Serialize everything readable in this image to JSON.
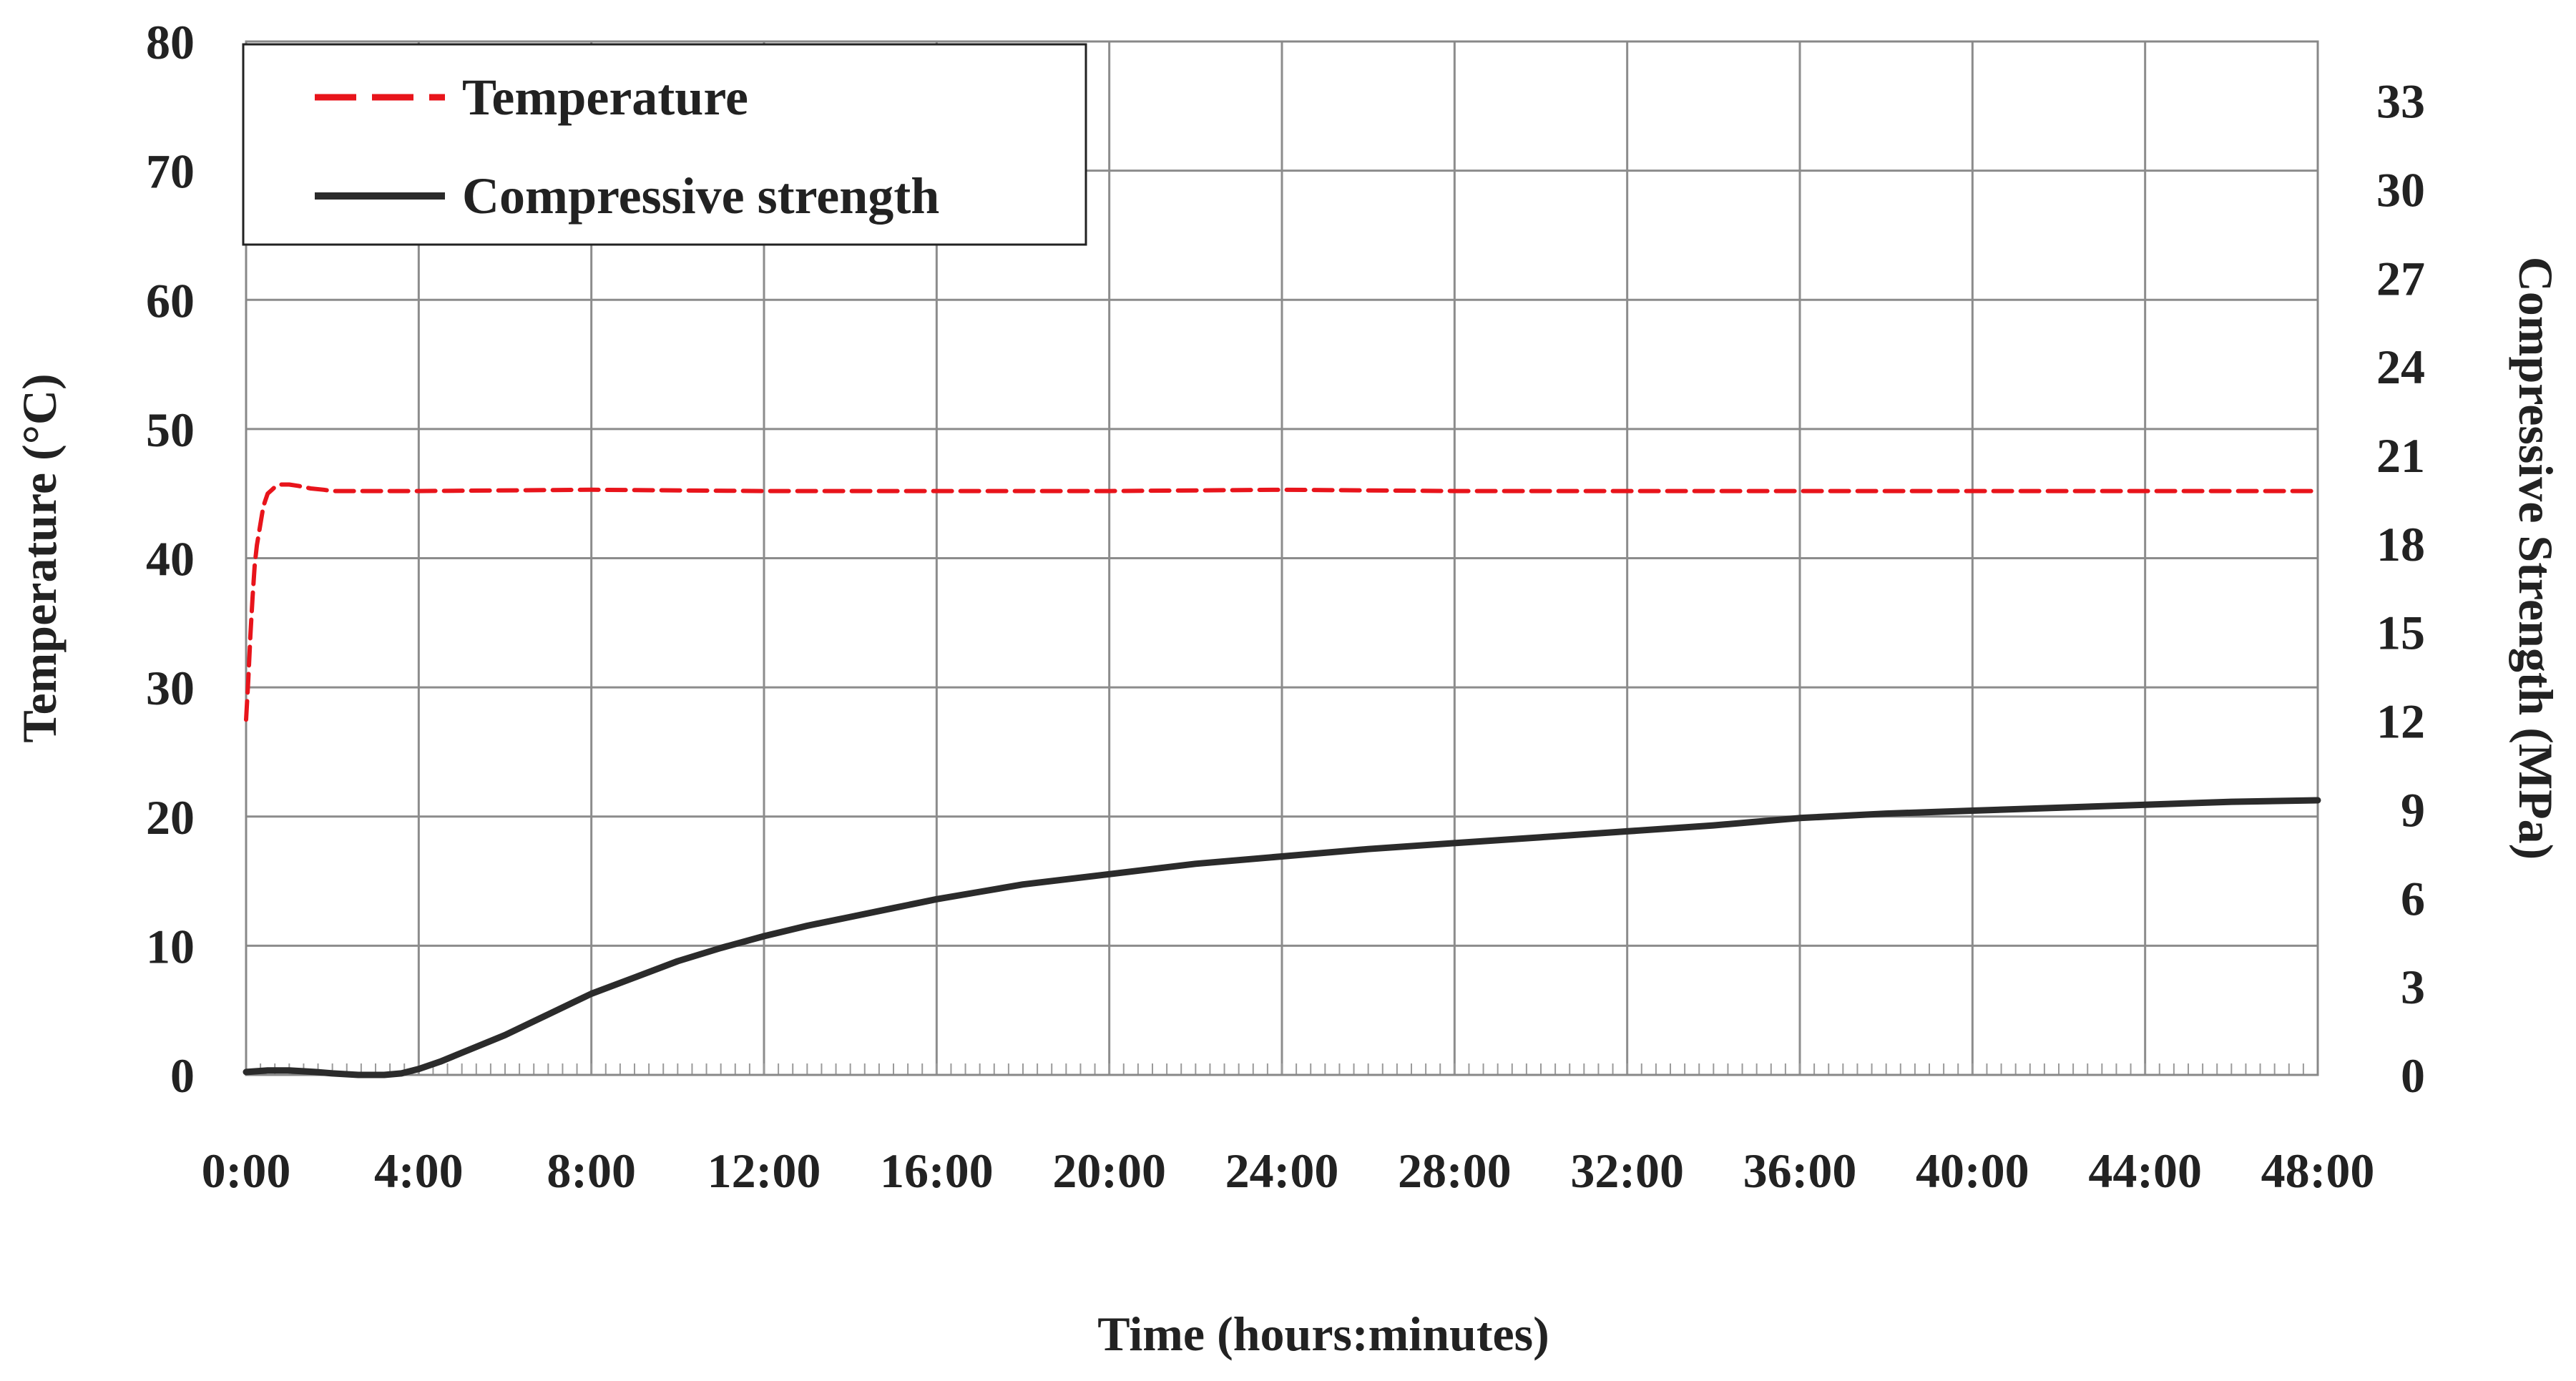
{
  "chart_data": {
    "type": "line",
    "title": "",
    "xlabel": "Time (hours:minutes)",
    "ylabel": "Temperature (°C)",
    "y2label": "Compressive Strength (MPa)",
    "xlim": [
      0,
      48
    ],
    "ylim": [
      0,
      80
    ],
    "y2lim": [
      0,
      35
    ],
    "x_ticks": [
      0,
      4,
      8,
      12,
      16,
      20,
      24,
      28,
      32,
      36,
      40,
      44,
      48
    ],
    "x_tick_labels": [
      "0:00",
      "4:00",
      "8:00",
      "12:00",
      "16:00",
      "20:00",
      "24:00",
      "28:00",
      "32:00",
      "36:00",
      "40:00",
      "44:00",
      "48:00"
    ],
    "y_ticks": [
      0,
      10,
      20,
      30,
      40,
      50,
      60,
      70,
      80
    ],
    "y_tick_labels": [
      "0",
      "10",
      "20",
      "30",
      "40",
      "50",
      "60",
      "70",
      "80"
    ],
    "y2_ticks": [
      0,
      3,
      6,
      9,
      12,
      15,
      18,
      21,
      24,
      27,
      30,
      33
    ],
    "y2_tick_labels": [
      "0",
      "3",
      "6",
      "9",
      "12",
      "15",
      "18",
      "21",
      "24",
      "27",
      "30",
      "33"
    ],
    "grid": true,
    "legend_position": "top-left",
    "series": [
      {
        "name": "Temperature",
        "axis": "left",
        "color": "#e8141b",
        "style": "dashed",
        "x": [
          0,
          0.05,
          0.1,
          0.15,
          0.2,
          0.25,
          0.3,
          0.35,
          0.4,
          0.45,
          0.5,
          0.6,
          0.7,
          0.8,
          1.0,
          1.2,
          1.5,
          1.8,
          2,
          4,
          8,
          12,
          16,
          20,
          24,
          28,
          32,
          36,
          40,
          44,
          48
        ],
        "values": [
          27.5,
          30.5,
          34,
          37,
          39.5,
          41,
          42,
          43,
          44,
          44.5,
          45,
          45.3,
          45.6,
          45.7,
          45.7,
          45.6,
          45.4,
          45.3,
          45.2,
          45.2,
          45.3,
          45.2,
          45.2,
          45.2,
          45.3,
          45.2,
          45.2,
          45.2,
          45.2,
          45.2,
          45.2
        ]
      },
      {
        "name": "Compressive strength",
        "axis": "right",
        "color": "#2b2b2b",
        "style": "solid",
        "x": [
          0,
          0.5,
          1.0,
          1.6,
          2.0,
          2.6,
          3.2,
          3.6,
          4.0,
          4.5,
          5.0,
          5.5,
          6.0,
          6.5,
          7.0,
          7.5,
          8.0,
          9.0,
          10.0,
          11.0,
          12.0,
          13.0,
          14.0,
          15.0,
          16.0,
          17.0,
          18.0,
          20.0,
          22.0,
          24.0,
          26.0,
          28.0,
          30.0,
          32.0,
          34.0,
          36.0,
          38.0,
          40.0,
          42.0,
          44.0,
          46.0,
          48.0
        ],
        "values": [
          0.1,
          0.15,
          0.15,
          0.1,
          0.05,
          0.0,
          0.0,
          0.05,
          0.2,
          0.45,
          0.75,
          1.05,
          1.35,
          1.7,
          2.05,
          2.4,
          2.75,
          3.3,
          3.85,
          4.3,
          4.7,
          5.05,
          5.35,
          5.65,
          5.95,
          6.2,
          6.45,
          6.8,
          7.15,
          7.4,
          7.65,
          7.85,
          8.05,
          8.25,
          8.45,
          8.7,
          8.85,
          8.95,
          9.05,
          9.15,
          9.25,
          9.3
        ]
      }
    ]
  }
}
